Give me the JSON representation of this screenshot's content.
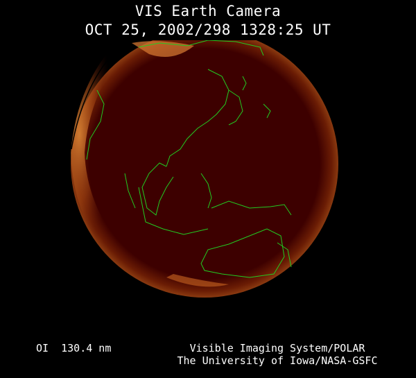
{
  "header": {
    "title": "VIS Earth Camera",
    "timestamp": "OCT 25, 2002/298 1328:25 UT"
  },
  "footer": {
    "wavelength": "OI  130.4 nm",
    "instrument": "Visible Imaging System/POLAR",
    "organization": "The University of Iowa/NASA-GSFC"
  },
  "colors": {
    "background": "#000000",
    "disk": "#3d0000",
    "aurora": "#d8782a",
    "coastline": "#22cc22"
  }
}
